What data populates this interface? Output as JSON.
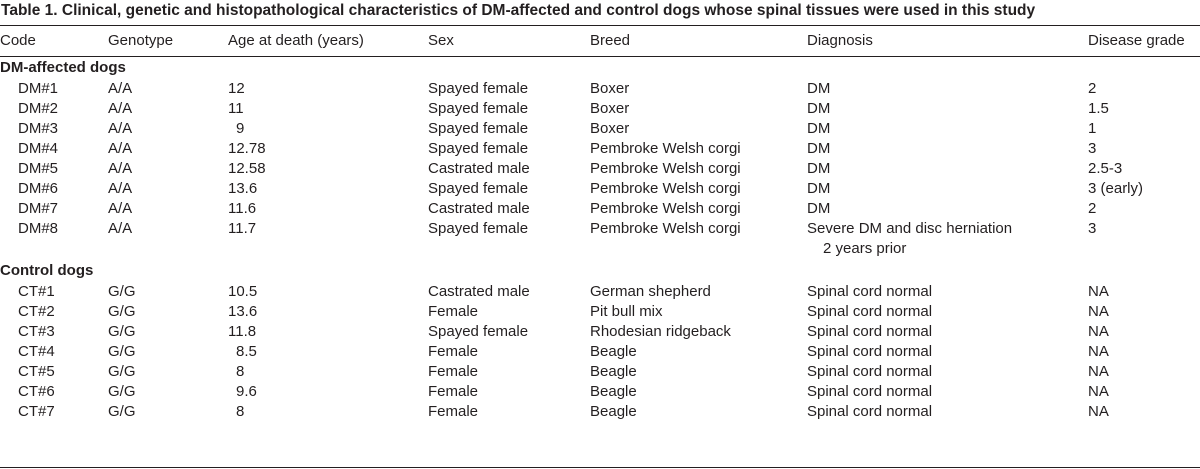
{
  "caption": "Table 1. Clinical, genetic and histopathological characteristics of DM-affected and control dogs whose spinal tissues were used in this study",
  "headers": {
    "code": "Code",
    "genotype": "Genotype",
    "age": "Age at death (years)",
    "sex": "Sex",
    "breed": "Breed",
    "diagnosis": "Diagnosis",
    "grade": "Disease grade"
  },
  "sections": {
    "dm": "DM-affected dogs",
    "control": "Control dogs"
  },
  "dm_rows": [
    {
      "code": "DM#1",
      "genotype": "A/A",
      "age": "12",
      "sex": "Spayed female",
      "breed": "Boxer",
      "diagnosis": "DM",
      "grade": "2"
    },
    {
      "code": "DM#2",
      "genotype": "A/A",
      "age": "11",
      "sex": "Spayed female",
      "breed": "Boxer",
      "diagnosis": "DM",
      "grade": "1.5"
    },
    {
      "code": "DM#3",
      "genotype": "A/A",
      "age": "9",
      "sex": "Spayed female",
      "breed": "Boxer",
      "diagnosis": "DM",
      "grade": "1"
    },
    {
      "code": "DM#4",
      "genotype": "A/A",
      "age": "12.78",
      "sex": "Spayed female",
      "breed": "Pembroke Welsh corgi",
      "diagnosis": "DM",
      "grade": "3"
    },
    {
      "code": "DM#5",
      "genotype": "A/A",
      "age": "12.58",
      "sex": "Castrated male",
      "breed": "Pembroke Welsh corgi",
      "diagnosis": "DM",
      "grade": "2.5-3"
    },
    {
      "code": "DM#6",
      "genotype": "A/A",
      "age": "13.6",
      "sex": "Spayed female",
      "breed": "Pembroke Welsh corgi",
      "diagnosis": "DM",
      "grade": "3 (early)"
    },
    {
      "code": "DM#7",
      "genotype": "A/A",
      "age": "11.6",
      "sex": "Castrated male",
      "breed": "Pembroke Welsh corgi",
      "diagnosis": "DM",
      "grade": "2"
    },
    {
      "code": "DM#8",
      "genotype": "A/A",
      "age": "11.7",
      "sex": "Spayed female",
      "breed": "Pembroke Welsh corgi",
      "diagnosis": "Severe DM and disc herniation",
      "diagnosis_line2": "2 years prior",
      "grade": "3"
    }
  ],
  "control_rows": [
    {
      "code": "CT#1",
      "genotype": "G/G",
      "age": "10.5",
      "sex": "Castrated male",
      "breed": "German shepherd",
      "diagnosis": "Spinal cord normal",
      "grade": "NA"
    },
    {
      "code": "CT#2",
      "genotype": "G/G",
      "age": "13.6",
      "sex": "Female",
      "breed": "Pit bull mix",
      "diagnosis": "Spinal cord normal",
      "grade": "NA"
    },
    {
      "code": "CT#3",
      "genotype": "G/G",
      "age": "11.8",
      "sex": "Spayed female",
      "breed": "Rhodesian ridgeback",
      "diagnosis": "Spinal cord normal",
      "grade": "NA"
    },
    {
      "code": "CT#4",
      "genotype": "G/G",
      "age": "8.5",
      "sex": "Female",
      "breed": "Beagle",
      "diagnosis": "Spinal cord normal",
      "grade": "NA"
    },
    {
      "code": "CT#5",
      "genotype": "G/G",
      "age": "8",
      "sex": "Female",
      "breed": "Beagle",
      "diagnosis": "Spinal cord normal",
      "grade": "NA"
    },
    {
      "code": "CT#6",
      "genotype": "G/G",
      "age": "9.6",
      "sex": "Female",
      "breed": "Beagle",
      "diagnosis": "Spinal cord normal",
      "grade": "NA"
    },
    {
      "code": "CT#7",
      "genotype": "G/G",
      "age": "8",
      "sex": "Female",
      "breed": "Beagle",
      "diagnosis": "Spinal cord normal",
      "grade": "NA"
    }
  ]
}
